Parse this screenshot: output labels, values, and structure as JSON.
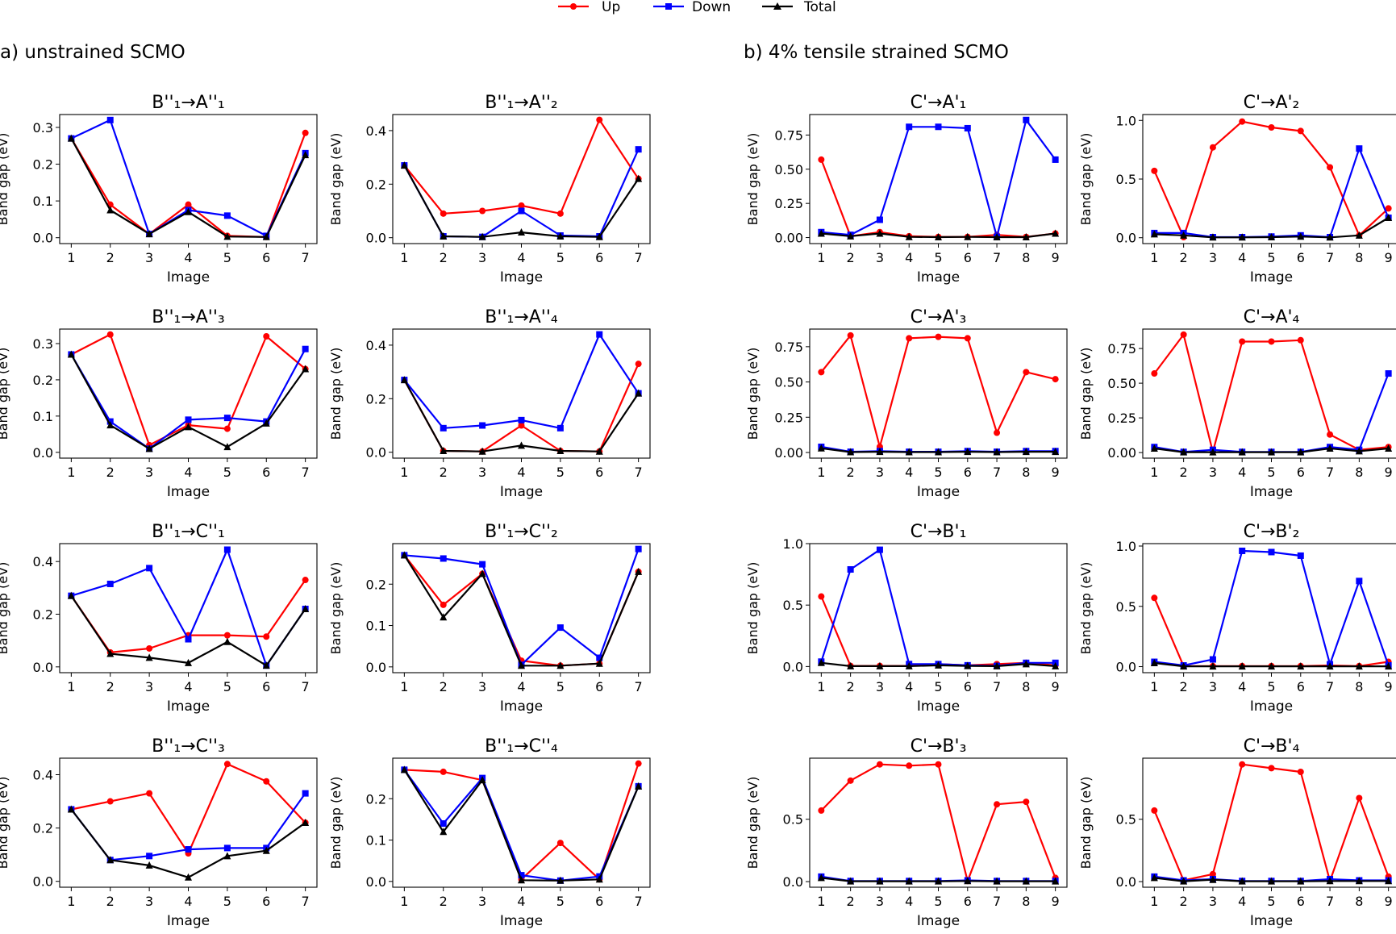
{
  "legend": {
    "up": "Up",
    "down": "Down",
    "total": "Total"
  },
  "section_titles": {
    "left": "a) unstrained SCMO",
    "right": "b) 4% tensile strained SCMO"
  },
  "colors": {
    "up": "#ff0000",
    "down": "#0000ff",
    "total": "#000000"
  },
  "chart_data": [
    {
      "type": "line",
      "title": "B''₁→A''₁",
      "xlabel": "Image",
      "ylabel": "Band gap (eV)",
      "x": [
        1,
        2,
        3,
        4,
        5,
        6,
        7
      ],
      "ylim": [
        -0.016,
        0.335
      ],
      "yticks": [
        "0.0",
        "0.1",
        "0.2",
        "0.3"
      ],
      "yticks_values": [
        0,
        0.1,
        0.2,
        0.3
      ],
      "series": [
        {
          "name": "Up",
          "values": [
            0.27,
            0.09,
            0.01,
            0.09,
            0.005,
            0.002,
            0.285
          ]
        },
        {
          "name": "Down",
          "values": [
            0.27,
            0.32,
            0.01,
            0.075,
            0.06,
            0.005,
            0.23
          ]
        },
        {
          "name": "Total",
          "values": [
            0.27,
            0.075,
            0.01,
            0.07,
            0.003,
            0.002,
            0.225
          ]
        }
      ]
    },
    {
      "type": "line",
      "title": "B''₁→A''₂",
      "xlabel": "Image",
      "ylabel": "Band gap (eV)",
      "x": [
        1,
        2,
        3,
        4,
        5,
        6,
        7
      ],
      "ylim": [
        -0.022,
        0.46
      ],
      "yticks": [
        "0.0",
        "0.2",
        "0.4"
      ],
      "yticks_values": [
        0,
        0.2,
        0.4
      ],
      "series": [
        {
          "name": "Up",
          "values": [
            0.27,
            0.09,
            0.1,
            0.12,
            0.09,
            0.44,
            0.22
          ]
        },
        {
          "name": "Down",
          "values": [
            0.27,
            0.005,
            0.003,
            0.1,
            0.008,
            0.005,
            0.33
          ]
        },
        {
          "name": "Total",
          "values": [
            0.27,
            0.005,
            0.003,
            0.02,
            0.005,
            0.003,
            0.22
          ]
        }
      ]
    },
    {
      "type": "line",
      "title": "C'→A'₁",
      "xlabel": "Image",
      "ylabel": "Band gap (eV)",
      "x": [
        1,
        2,
        3,
        4,
        5,
        6,
        7,
        8,
        9
      ],
      "ylim": [
        -0.044,
        0.9
      ],
      "yticks": [
        "0.00",
        "0.25",
        "0.50",
        "0.75"
      ],
      "yticks_values": [
        0,
        0.25,
        0.5,
        0.75
      ],
      "series": [
        {
          "name": "Up",
          "values": [
            0.57,
            0.01,
            0.04,
            0.01,
            0.005,
            0.005,
            0.02,
            0.005,
            0.03
          ]
        },
        {
          "name": "Down",
          "values": [
            0.04,
            0.02,
            0.13,
            0.81,
            0.81,
            0.8,
            0.005,
            0.86,
            0.57
          ]
        },
        {
          "name": "Total",
          "values": [
            0.03,
            0.01,
            0.03,
            0.005,
            0.003,
            0.005,
            0.003,
            0.003,
            0.03
          ]
        }
      ]
    },
    {
      "type": "line",
      "title": "C'→A'₂",
      "xlabel": "Image",
      "ylabel": "Band gap (eV)",
      "x": [
        1,
        2,
        3,
        4,
        5,
        6,
        7,
        8,
        9
      ],
      "ylim": [
        -0.05,
        1.05
      ],
      "yticks": [
        "0.0",
        "0.5",
        "1.0"
      ],
      "yticks_values": [
        0,
        0.5,
        1
      ],
      "series": [
        {
          "name": "Up",
          "values": [
            0.57,
            0.005,
            0.77,
            0.99,
            0.94,
            0.91,
            0.6,
            0.02,
            0.25
          ]
        },
        {
          "name": "Down",
          "values": [
            0.04,
            0.04,
            0.005,
            0.005,
            0.01,
            0.02,
            0.005,
            0.76,
            0.17
          ]
        },
        {
          "name": "Total",
          "values": [
            0.03,
            0.02,
            0.003,
            0.003,
            0.005,
            0.01,
            0.003,
            0.02,
            0.17
          ]
        }
      ]
    },
    {
      "type": "line",
      "title": "B''₁→A''₃",
      "xlabel": "Image",
      "ylabel": "Band gap (eV)",
      "x": [
        1,
        2,
        3,
        4,
        5,
        6,
        7
      ],
      "ylim": [
        -0.016,
        0.34
      ],
      "yticks": [
        "0.0",
        "0.1",
        "0.2",
        "0.3"
      ],
      "yticks_values": [
        0,
        0.1,
        0.2,
        0.3
      ],
      "series": [
        {
          "name": "Up",
          "values": [
            0.27,
            0.325,
            0.02,
            0.075,
            0.065,
            0.32,
            0.23
          ]
        },
        {
          "name": "Down",
          "values": [
            0.27,
            0.085,
            0.01,
            0.09,
            0.095,
            0.085,
            0.285
          ]
        },
        {
          "name": "Total",
          "values": [
            0.27,
            0.075,
            0.01,
            0.07,
            0.015,
            0.08,
            0.23
          ]
        }
      ]
    },
    {
      "type": "line",
      "title": "B''₁→A''₄",
      "xlabel": "Image",
      "ylabel": "Band gap (eV)",
      "x": [
        1,
        2,
        3,
        4,
        5,
        6,
        7
      ],
      "ylim": [
        -0.022,
        0.46
      ],
      "yticks": [
        "0.0",
        "0.2",
        "0.4"
      ],
      "yticks_values": [
        0,
        0.2,
        0.4
      ],
      "series": [
        {
          "name": "Up",
          "values": [
            0.27,
            0.005,
            0.003,
            0.1,
            0.005,
            0.003,
            0.33
          ]
        },
        {
          "name": "Down",
          "values": [
            0.27,
            0.09,
            0.1,
            0.12,
            0.09,
            0.44,
            0.22
          ]
        },
        {
          "name": "Total",
          "values": [
            0.27,
            0.005,
            0.003,
            0.025,
            0.005,
            0.003,
            0.22
          ]
        }
      ]
    },
    {
      "type": "line",
      "title": "C'→A'₃",
      "xlabel": "Image",
      "ylabel": "Band gap (eV)",
      "x": [
        1,
        2,
        3,
        4,
        5,
        6,
        7,
        8,
        9
      ],
      "ylim": [
        -0.04,
        0.875
      ],
      "yticks": [
        "0.00",
        "0.25",
        "0.50",
        "0.75"
      ],
      "yticks_values": [
        0,
        0.25,
        0.5,
        0.75
      ],
      "series": [
        {
          "name": "Up",
          "values": [
            0.57,
            0.83,
            0.04,
            0.81,
            0.82,
            0.81,
            0.14,
            0.57,
            0.52
          ]
        },
        {
          "name": "Down",
          "values": [
            0.04,
            0.005,
            0.01,
            0.005,
            0.005,
            0.01,
            0.005,
            0.01,
            0.01
          ]
        },
        {
          "name": "Total",
          "values": [
            0.03,
            0.003,
            0.005,
            0.003,
            0.003,
            0.005,
            0.003,
            0.005,
            0.005
          ]
        }
      ]
    },
    {
      "type": "line",
      "title": "C'→A'₄",
      "xlabel": "Image",
      "ylabel": "Band gap (eV)",
      "x": [
        1,
        2,
        3,
        4,
        5,
        6,
        7,
        8,
        9
      ],
      "ylim": [
        -0.04,
        0.89
      ],
      "yticks": [
        "0.00",
        "0.25",
        "0.50",
        "0.75"
      ],
      "yticks_values": [
        0,
        0.25,
        0.5,
        0.75
      ],
      "series": [
        {
          "name": "Up",
          "values": [
            0.57,
            0.85,
            0.005,
            0.8,
            0.8,
            0.81,
            0.13,
            0.02,
            0.04
          ]
        },
        {
          "name": "Down",
          "values": [
            0.04,
            0.005,
            0.02,
            0.005,
            0.005,
            0.005,
            0.04,
            0.02,
            0.57
          ]
        },
        {
          "name": "Total",
          "values": [
            0.03,
            0.003,
            0.003,
            0.003,
            0.003,
            0.003,
            0.03,
            0.01,
            0.03
          ]
        }
      ]
    },
    {
      "type": "line",
      "title": "B''₁→C''₁",
      "xlabel": "Image",
      "ylabel": "Band gap (eV)",
      "x": [
        1,
        2,
        3,
        4,
        5,
        6,
        7
      ],
      "ylim": [
        -0.022,
        0.468
      ],
      "yticks": [
        "0.0",
        "0.2",
        "0.4"
      ],
      "yticks_values": [
        0,
        0.2,
        0.4
      ],
      "series": [
        {
          "name": "Up",
          "values": [
            0.27,
            0.055,
            0.07,
            0.12,
            0.12,
            0.115,
            0.33
          ]
        },
        {
          "name": "Down",
          "values": [
            0.27,
            0.315,
            0.375,
            0.105,
            0.445,
            0.005,
            0.22
          ]
        },
        {
          "name": "Total",
          "values": [
            0.27,
            0.05,
            0.035,
            0.015,
            0.095,
            0.005,
            0.22
          ]
        }
      ]
    },
    {
      "type": "line",
      "title": "B''₁→C''₂",
      "xlabel": "Image",
      "ylabel": "Band gap (eV)",
      "x": [
        1,
        2,
        3,
        4,
        5,
        6,
        7
      ],
      "ylim": [
        -0.014,
        0.298
      ],
      "yticks": [
        "0.0",
        "0.1",
        "0.2"
      ],
      "yticks_values": [
        0,
        0.1,
        0.2
      ],
      "series": [
        {
          "name": "Up",
          "values": [
            0.27,
            0.15,
            0.225,
            0.015,
            0.003,
            0.008,
            0.23
          ]
        },
        {
          "name": "Down",
          "values": [
            0.27,
            0.262,
            0.248,
            0.005,
            0.095,
            0.022,
            0.285
          ]
        },
        {
          "name": "Total",
          "values": [
            0.27,
            0.12,
            0.225,
            0.003,
            0.003,
            0.008,
            0.23
          ]
        }
      ]
    },
    {
      "type": "line",
      "title": "C'→B'₁",
      "xlabel": "Image",
      "ylabel": "Band gap (eV)",
      "x": [
        1,
        2,
        3,
        4,
        5,
        6,
        7,
        8,
        9
      ],
      "ylim": [
        -0.05,
        1.0
      ],
      "yticks": [
        "0.0",
        "0.5",
        "1.0"
      ],
      "yticks_values": [
        0,
        0.5,
        1
      ],
      "series": [
        {
          "name": "Up",
          "values": [
            0.57,
            0.005,
            0.005,
            0.005,
            0.02,
            0.01,
            0.02,
            0.03,
            0.01
          ]
        },
        {
          "name": "Down",
          "values": [
            0.04,
            0.79,
            0.95,
            0.02,
            0.02,
            0.01,
            0.005,
            0.03,
            0.03
          ]
        },
        {
          "name": "Total",
          "values": [
            0.03,
            0.003,
            0.003,
            0.003,
            0.01,
            0.005,
            0.003,
            0.02,
            0.003
          ]
        }
      ]
    },
    {
      "type": "line",
      "title": "C'→B'₂",
      "xlabel": "Image",
      "ylabel": "Band gap (eV)",
      "x": [
        1,
        2,
        3,
        4,
        5,
        6,
        7,
        8,
        9
      ],
      "ylim": [
        -0.05,
        1.02
      ],
      "yticks": [
        "0.0",
        "0.5",
        "1.0"
      ],
      "yticks_values": [
        0,
        0.5,
        1
      ],
      "series": [
        {
          "name": "Up",
          "values": [
            0.57,
            0.005,
            0.005,
            0.005,
            0.005,
            0.005,
            0.01,
            0.005,
            0.04
          ]
        },
        {
          "name": "Down",
          "values": [
            0.04,
            0.01,
            0.06,
            0.96,
            0.95,
            0.92,
            0.02,
            0.71,
            0.01
          ]
        },
        {
          "name": "Total",
          "values": [
            0.03,
            0.003,
            0.003,
            0.003,
            0.003,
            0.003,
            0.003,
            0.003,
            0.003
          ]
        }
      ]
    },
    {
      "type": "line",
      "title": "B''₁→C''₃",
      "xlabel": "Image",
      "ylabel": "Band gap (eV)",
      "x": [
        1,
        2,
        3,
        4,
        5,
        6,
        7
      ],
      "ylim": [
        -0.022,
        0.462
      ],
      "yticks": [
        "0.0",
        "0.2",
        "0.4"
      ],
      "yticks_values": [
        0,
        0.2,
        0.4
      ],
      "series": [
        {
          "name": "Up",
          "values": [
            0.27,
            0.3,
            0.33,
            0.105,
            0.44,
            0.375,
            0.22
          ]
        },
        {
          "name": "Down",
          "values": [
            0.27,
            0.08,
            0.095,
            0.12,
            0.125,
            0.125,
            0.33
          ]
        },
        {
          "name": "Total",
          "values": [
            0.27,
            0.08,
            0.06,
            0.015,
            0.095,
            0.115,
            0.22
          ]
        }
      ]
    },
    {
      "type": "line",
      "title": "B''₁→C''₄",
      "xlabel": "Image",
      "ylabel": "Band gap (eV)",
      "x": [
        1,
        2,
        3,
        4,
        5,
        6,
        7
      ],
      "ylim": [
        -0.014,
        0.298
      ],
      "yticks": [
        "0.0",
        "0.1",
        "0.2"
      ],
      "yticks_values": [
        0,
        0.1,
        0.2
      ],
      "series": [
        {
          "name": "Up",
          "values": [
            0.27,
            0.265,
            0.245,
            0.005,
            0.093,
            0.005,
            0.285
          ]
        },
        {
          "name": "Down",
          "values": [
            0.27,
            0.14,
            0.25,
            0.015,
            0.002,
            0.012,
            0.23
          ]
        },
        {
          "name": "Total",
          "values": [
            0.27,
            0.12,
            0.245,
            0.003,
            0.002,
            0.005,
            0.23
          ]
        }
      ]
    },
    {
      "type": "line",
      "title": "C'→B'₃",
      "xlabel": "Image",
      "ylabel": "Band gap (eV)",
      "x": [
        1,
        2,
        3,
        4,
        5,
        6,
        7,
        8,
        9
      ],
      "ylim": [
        -0.045,
        0.99
      ],
      "yticks": [
        "0.0",
        "0.5"
      ],
      "yticks_values": [
        0,
        0.5
      ],
      "series": [
        {
          "name": "Up",
          "values": [
            0.57,
            0.81,
            0.94,
            0.93,
            0.94,
            0.005,
            0.62,
            0.64,
            0.03
          ]
        },
        {
          "name": "Down",
          "values": [
            0.04,
            0.005,
            0.005,
            0.005,
            0.005,
            0.01,
            0.005,
            0.005,
            0.005
          ]
        },
        {
          "name": "Total",
          "values": [
            0.03,
            0.003,
            0.003,
            0.003,
            0.003,
            0.005,
            0.003,
            0.003,
            0.003
          ]
        }
      ]
    },
    {
      "type": "line",
      "title": "C'→B'₄",
      "xlabel": "Image",
      "ylabel": "Band gap (eV)",
      "x": [
        1,
        2,
        3,
        4,
        5,
        6,
        7,
        8,
        9
      ],
      "ylim": [
        -0.045,
        0.99
      ],
      "yticks": [
        "0.0",
        "0.5"
      ],
      "yticks_values": [
        0,
        0.5
      ],
      "series": [
        {
          "name": "Up",
          "values": [
            0.57,
            0.01,
            0.06,
            0.94,
            0.91,
            0.88,
            0.005,
            0.67,
            0.04
          ]
        },
        {
          "name": "Down",
          "values": [
            0.04,
            0.01,
            0.02,
            0.005,
            0.005,
            0.005,
            0.02,
            0.01,
            0.01
          ]
        },
        {
          "name": "Total",
          "values": [
            0.03,
            0.003,
            0.015,
            0.003,
            0.003,
            0.003,
            0.005,
            0.005,
            0.005
          ]
        }
      ]
    }
  ]
}
